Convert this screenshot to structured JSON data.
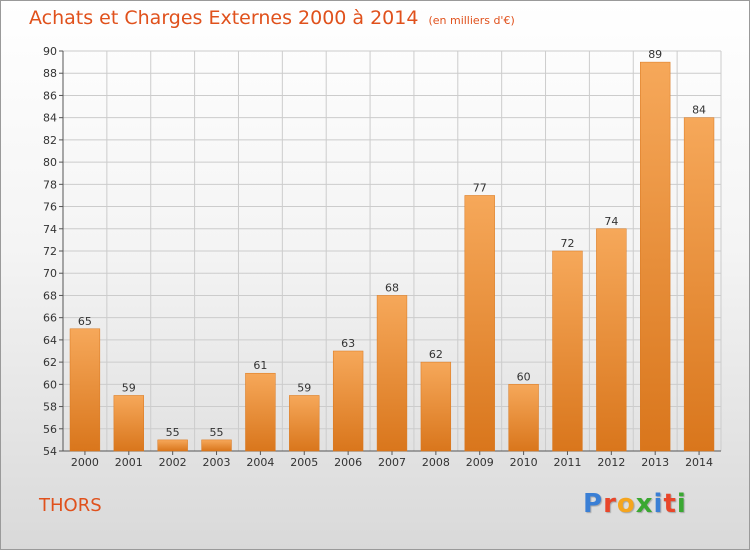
{
  "header": {
    "title": "Achats et Charges Externes 2000 à 2014",
    "unit": "(en milliers d'€)"
  },
  "footer": {
    "commune": "THORS",
    "logo_letters": [
      "P",
      "r",
      "o",
      "x",
      "i",
      "t",
      "i"
    ],
    "logo_colors": [
      "#3a7fd5",
      "#e8462a",
      "#f5a51e",
      "#3aa832",
      "#3a7fd5",
      "#e8462a",
      "#3aa832"
    ]
  },
  "colors": {
    "bar_light": "#f6a85a",
    "bar_dark": "#d9761c",
    "grid": "#cccccc",
    "title": "#e0511c"
  },
  "chart_data": {
    "type": "bar",
    "categories": [
      "2000",
      "2001",
      "2002",
      "2003",
      "2004",
      "2005",
      "2006",
      "2007",
      "2008",
      "2009",
      "2010",
      "2011",
      "2012",
      "2013",
      "2014"
    ],
    "values": [
      65,
      59,
      55,
      55,
      61,
      59,
      63,
      68,
      62,
      77,
      60,
      72,
      74,
      89,
      84
    ],
    "ylim": [
      54,
      90
    ],
    "yticks": [
      54,
      56,
      58,
      60,
      62,
      64,
      66,
      68,
      70,
      72,
      74,
      76,
      78,
      80,
      82,
      84,
      86,
      88,
      90
    ],
    "grid": true,
    "data_labels": true
  }
}
